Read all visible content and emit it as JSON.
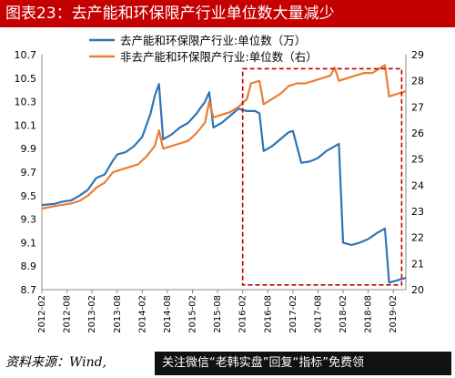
{
  "header": {
    "title": "图表23：去产能和环保限产行业单位数大量减少"
  },
  "footer": {
    "source": "资料来源：Wind,",
    "watermark": "关注微信“老韩实盘”回复“指标”免费领"
  },
  "chart_data": {
    "type": "line",
    "colors": {
      "left_series": "#2e75b6",
      "right_series": "#ed7d31",
      "highlight_box": "#c00000"
    },
    "legend_position": "top-left",
    "series": [
      {
        "name": "去产能和环保限产行业:单位数（万）",
        "axis": "left",
        "points": [
          [
            "2012-02",
            9.42
          ],
          [
            "2012-05",
            9.43
          ],
          [
            "2012-07",
            9.45
          ],
          [
            "2012-09",
            9.46
          ],
          [
            "2012-11",
            9.5
          ],
          [
            "2013-01",
            9.55
          ],
          [
            "2013-03",
            9.65
          ],
          [
            "2013-05",
            9.68
          ],
          [
            "2013-07",
            9.8
          ],
          [
            "2013-08",
            9.85
          ],
          [
            "2013-10",
            9.87
          ],
          [
            "2013-12",
            9.92
          ],
          [
            "2014-02",
            10.0
          ],
          [
            "2014-04",
            10.2
          ],
          [
            "2014-05",
            10.35
          ],
          [
            "2014-06",
            10.45
          ],
          [
            "2014-07",
            9.98
          ],
          [
            "2014-09",
            10.02
          ],
          [
            "2014-11",
            10.08
          ],
          [
            "2015-01",
            10.12
          ],
          [
            "2015-03",
            10.2
          ],
          [
            "2015-05",
            10.3
          ],
          [
            "2015-06",
            10.38
          ],
          [
            "2015-07",
            10.08
          ],
          [
            "2015-09",
            10.12
          ],
          [
            "2015-11",
            10.18
          ],
          [
            "2016-01",
            10.24
          ],
          [
            "2016-03",
            10.22
          ],
          [
            "2016-05",
            10.22
          ],
          [
            "2016-06",
            10.2
          ],
          [
            "2016-07",
            9.88
          ],
          [
            "2016-09",
            9.92
          ],
          [
            "2016-11",
            9.98
          ],
          [
            "2017-01",
            10.04
          ],
          [
            "2017-02",
            10.05
          ],
          [
            "2017-04",
            9.78
          ],
          [
            "2017-06",
            9.79
          ],
          [
            "2017-08",
            9.82
          ],
          [
            "2017-10",
            9.88
          ],
          [
            "2017-12",
            9.92
          ],
          [
            "2018-01",
            9.94
          ],
          [
            "2018-02",
            9.1
          ],
          [
            "2018-04",
            9.08
          ],
          [
            "2018-06",
            9.1
          ],
          [
            "2018-08",
            9.13
          ],
          [
            "2018-10",
            9.18
          ],
          [
            "2018-12",
            9.22
          ],
          [
            "2019-01",
            8.76
          ],
          [
            "2019-03",
            8.78
          ],
          [
            "2019-05",
            8.8
          ]
        ]
      },
      {
        "name": "非去产能和环保限产行业:单位数（右）",
        "axis": "right",
        "points": [
          [
            "2012-02",
            23.1
          ],
          [
            "2012-05",
            23.2
          ],
          [
            "2012-07",
            23.25
          ],
          [
            "2012-09",
            23.3
          ],
          [
            "2012-11",
            23.4
          ],
          [
            "2013-01",
            23.6
          ],
          [
            "2013-03",
            23.9
          ],
          [
            "2013-05",
            24.1
          ],
          [
            "2013-07",
            24.5
          ],
          [
            "2013-09",
            24.6
          ],
          [
            "2013-11",
            24.7
          ],
          [
            "2014-01",
            24.8
          ],
          [
            "2014-03",
            25.1
          ],
          [
            "2014-05",
            25.5
          ],
          [
            "2014-06",
            26.1
          ],
          [
            "2014-07",
            25.4
          ],
          [
            "2014-09",
            25.5
          ],
          [
            "2014-11",
            25.6
          ],
          [
            "2015-01",
            25.7
          ],
          [
            "2015-03",
            26.0
          ],
          [
            "2015-05",
            26.4
          ],
          [
            "2015-06",
            27.2
          ],
          [
            "2015-07",
            26.6
          ],
          [
            "2015-09",
            26.7
          ],
          [
            "2015-11",
            26.8
          ],
          [
            "2016-01",
            27.0
          ],
          [
            "2016-03",
            27.3
          ],
          [
            "2016-04",
            27.9
          ],
          [
            "2016-06",
            28.0
          ],
          [
            "2016-07",
            27.1
          ],
          [
            "2016-09",
            27.3
          ],
          [
            "2016-11",
            27.5
          ],
          [
            "2017-01",
            27.8
          ],
          [
            "2017-03",
            27.9
          ],
          [
            "2017-05",
            27.9
          ],
          [
            "2017-07",
            28.0
          ],
          [
            "2017-09",
            28.1
          ],
          [
            "2017-11",
            28.2
          ],
          [
            "2017-12",
            28.5
          ],
          [
            "2018-01",
            28.0
          ],
          [
            "2018-03",
            28.1
          ],
          [
            "2018-05",
            28.2
          ],
          [
            "2018-07",
            28.3
          ],
          [
            "2018-09",
            28.3
          ],
          [
            "2018-11",
            28.5
          ],
          [
            "2018-12",
            28.6
          ],
          [
            "2019-01",
            27.4
          ],
          [
            "2019-03",
            27.5
          ],
          [
            "2019-05",
            27.6
          ]
        ]
      }
    ],
    "x_range": [
      "2012-02",
      "2019-05"
    ],
    "x_ticks": [
      "2012-02",
      "2012-08",
      "2013-02",
      "2013-08",
      "2014-02",
      "2014-08",
      "2015-02",
      "2015-08",
      "2016-02",
      "2016-08",
      "2017-02",
      "2017-08",
      "2018-02",
      "2018-08",
      "2019-02"
    ],
    "y_left": {
      "min": 8.7,
      "max": 10.7,
      "ticks": [
        "8.7",
        "8.9",
        "9.1",
        "9.3",
        "9.5",
        "9.7",
        "9.9",
        "10.1",
        "10.3",
        "10.5",
        "10.7"
      ]
    },
    "y_right": {
      "min": 20,
      "max": 29,
      "ticks": [
        "20",
        "21",
        "22",
        "23",
        "24",
        "25",
        "26",
        "27",
        "28",
        "29"
      ]
    },
    "highlight": {
      "x_start": "2016-02",
      "x_end": "2019-04",
      "y_left_low": 8.74,
      "y_left_high": 10.58
    }
  }
}
